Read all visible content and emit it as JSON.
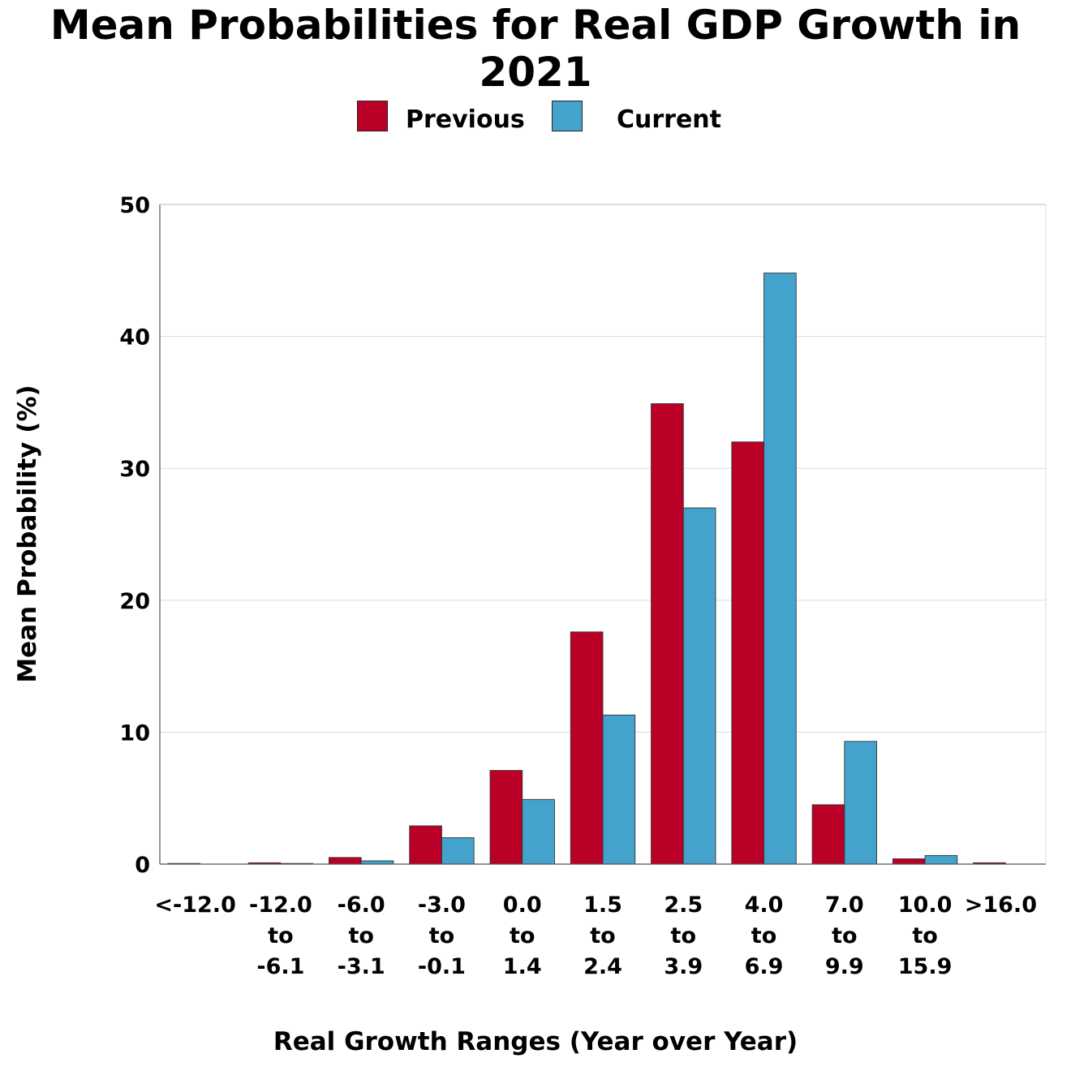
{
  "chart_data": {
    "type": "bar",
    "title": "Mean Probabilities for Real GDP Growth in 2021",
    "xlabel": "Real Growth Ranges (Year over Year)",
    "ylabel": "Mean Probability (%)",
    "ylim": [
      0,
      50
    ],
    "yticks": [
      0,
      10,
      20,
      30,
      40,
      50
    ],
    "grid": true,
    "legend_position": "top-center",
    "categories": [
      [
        "<-12.0"
      ],
      [
        "-12.0",
        "to",
        "-6.1"
      ],
      [
        "-6.0",
        "to",
        "-3.1"
      ],
      [
        "-3.0",
        "to",
        "-0.1"
      ],
      [
        "0.0",
        "to",
        "1.4"
      ],
      [
        "1.5",
        "to",
        "2.4"
      ],
      [
        "2.5",
        "to",
        "3.9"
      ],
      [
        "4.0",
        "to",
        "6.9"
      ],
      [
        "7.0",
        "to",
        "9.9"
      ],
      [
        "10.0",
        "to",
        "15.9"
      ],
      [
        ">16.0"
      ]
    ],
    "series": [
      {
        "name": "Previous",
        "color": "#bb0027",
        "values": [
          0.05,
          0.1,
          0.5,
          2.9,
          7.1,
          17.6,
          34.9,
          32.0,
          4.5,
          0.4,
          0.1
        ]
      },
      {
        "name": "Current",
        "color": "#44a3cd",
        "values": [
          0.0,
          0.05,
          0.25,
          2.0,
          4.9,
          11.3,
          27.0,
          44.8,
          9.3,
          0.65,
          0.0
        ]
      }
    ]
  }
}
